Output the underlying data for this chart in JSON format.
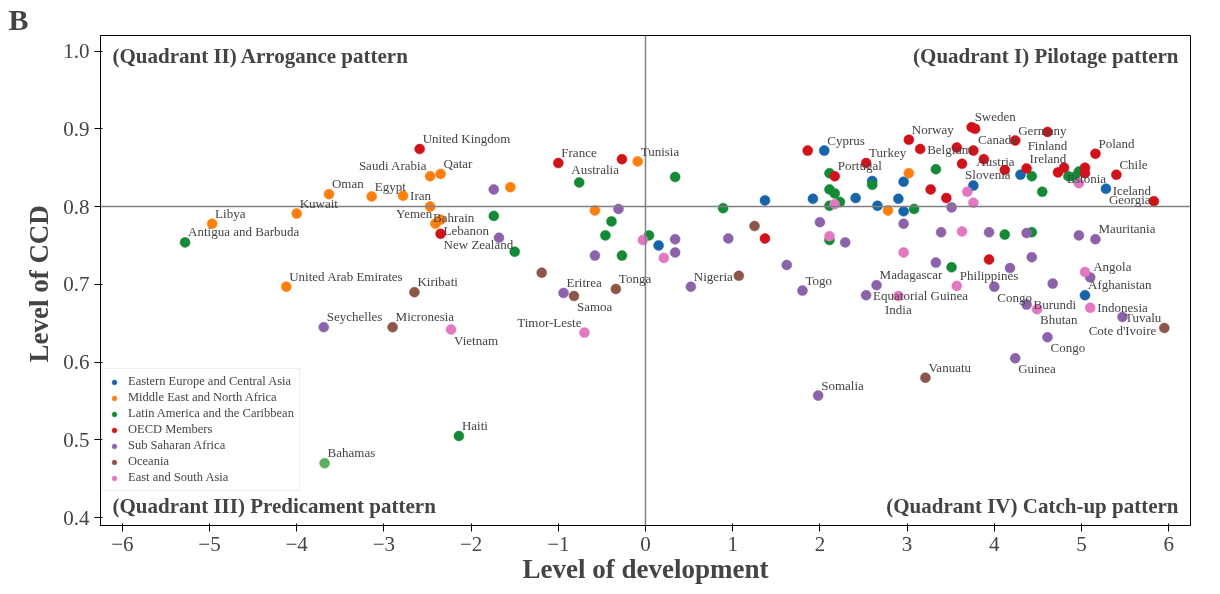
{
  "chart_data": {
    "type": "scatter",
    "title": "B",
    "xlabel": "Level of development",
    "ylabel": "Level of  CCD",
    "xlim": [
      -6.25,
      6.25
    ],
    "ylim": [
      0.39,
      1.02
    ],
    "xticks": [
      {
        "value": -6,
        "label": "−6"
      },
      {
        "value": -5,
        "label": "−5"
      },
      {
        "value": -4,
        "label": "−4"
      },
      {
        "value": -3,
        "label": "−3"
      },
      {
        "value": -2,
        "label": "−2"
      },
      {
        "value": -1,
        "label": "−1"
      },
      0,
      1,
      2,
      3,
      4,
      5,
      6
    ],
    "yticks": [
      {
        "value": 0.4,
        "label": "0.4"
      },
      {
        "value": 0.5,
        "label": "0.5"
      },
      {
        "value": 0.6,
        "label": "0.6"
      },
      {
        "value": 0.7,
        "label": "0.7"
      },
      {
        "value": 0.8,
        "label": "0.8"
      },
      {
        "value": 0.9,
        "label": "0.9"
      },
      {
        "value": 1.0,
        "label": "1.0"
      }
    ],
    "grid": false,
    "legend": "bottom left",
    "marker": "circle",
    "ref_lines": [
      {
        "axis": "x",
        "value": 0,
        "color": "#808080"
      },
      {
        "axis": "y",
        "value": 0.8,
        "color": "#808080"
      }
    ],
    "series": [
      {
        "name": "Eastern Europe and Central Asia",
        "color": "#1764ab",
        "x": [
          2.05,
          1.37,
          1.92,
          2.41,
          2.6,
          2.66,
          2.9,
          2.96,
          2.96,
          3.76,
          4.3,
          5.28,
          0.15,
          5.04
        ],
        "values": [
          0.872,
          0.808,
          0.81,
          0.811,
          0.833,
          0.801,
          0.81,
          0.832,
          0.794,
          0.827,
          0.841,
          0.823,
          0.75,
          0.686
        ]
      },
      {
        "name": "Middle East and North Africa",
        "color": "#ff7f0e",
        "x": [
          -4.97,
          -4.12,
          -4.0,
          -3.63,
          -3.14,
          -2.78,
          -2.47,
          -2.35,
          -2.47,
          -2.35,
          -2.41,
          -1.55,
          -0.58,
          -0.09,
          2.78,
          3.02
        ],
        "values": [
          0.778,
          0.697,
          0.791,
          0.816,
          0.813,
          0.814,
          0.839,
          0.842,
          0.8,
          0.783,
          0.778,
          0.825,
          0.795,
          0.858,
          0.795,
          0.843
        ]
      },
      {
        "name": "Latin America and the Caribbean",
        "color": "#138a36",
        "colors": [
          null,
          null,
          null,
          null,
          null,
          null,
          null,
          null,
          null,
          null,
          null,
          null,
          null,
          null,
          null,
          null,
          null,
          null,
          null,
          null,
          null,
          null,
          null,
          null,
          null,
          null,
          null,
          null,
          "#5fae5f"
        ],
        "x": [
          -5.28,
          -1.74,
          -1.5,
          -0.76,
          -0.39,
          -0.46,
          -0.27,
          0.04,
          0.34,
          0.89,
          2.11,
          2.11,
          2.17,
          2.23,
          2.11,
          2.11,
          2.6,
          3.08,
          3.33,
          3.51,
          4.12,
          4.43,
          4.43,
          4.55,
          4.85,
          4.92,
          4.97,
          -2.14,
          -3.68
        ],
        "values": [
          0.754,
          0.788,
          0.742,
          0.831,
          0.781,
          0.763,
          0.737,
          0.763,
          0.838,
          0.798,
          0.843,
          0.822,
          0.817,
          0.806,
          0.801,
          0.757,
          0.828,
          0.797,
          0.848,
          0.722,
          0.764,
          0.839,
          0.767,
          0.819,
          0.839,
          0.838,
          0.845,
          0.505,
          0.47
        ]
      },
      {
        "name": "OECD Members",
        "color": "#d0121b",
        "x": [
          -2.59,
          -2.35,
          -1.0,
          -0.27,
          1.37,
          1.86,
          2.17,
          2.53,
          3.02,
          3.15,
          3.57,
          3.74,
          3.78,
          3.76,
          3.88,
          3.63,
          4.12,
          4.24,
          4.61,
          4.37,
          4.73,
          4.8,
          5.04,
          5.04,
          5.16,
          5.4,
          5.83,
          3.27,
          3.45,
          3.94
        ],
        "values": [
          0.874,
          0.765,
          0.856,
          0.861,
          0.759,
          0.872,
          0.839,
          0.856,
          0.886,
          0.874,
          0.876,
          0.902,
          0.9,
          0.872,
          0.861,
          0.855,
          0.847,
          0.885,
          0.896,
          0.849,
          0.844,
          0.85,
          0.85,
          0.843,
          0.868,
          0.841,
          0.807,
          0.822,
          0.811,
          0.732
        ]
      },
      {
        "name": "Sub Saharan Africa",
        "color": "#8c62aa",
        "x": [
          -1.74,
          -1.68,
          -3.69,
          -0.94,
          -0.58,
          -0.31,
          0.34,
          0.34,
          0.52,
          0.95,
          1.62,
          1.8,
          2.0,
          2.29,
          2.96,
          3.51,
          3.39,
          3.94,
          4.37,
          4.97,
          5.16,
          3.33,
          4.18,
          4.43,
          2.65,
          2.53,
          4.0,
          4.67,
          5.1,
          4.37,
          5.47,
          4.61,
          4.24,
          1.98
        ],
        "values": [
          0.822,
          0.76,
          0.645,
          0.689,
          0.737,
          0.797,
          0.758,
          0.741,
          0.697,
          0.759,
          0.725,
          0.692,
          0.78,
          0.754,
          0.778,
          0.799,
          0.767,
          0.767,
          0.766,
          0.763,
          0.758,
          0.728,
          0.721,
          0.735,
          0.699,
          0.686,
          0.697,
          0.701,
          0.709,
          0.674,
          0.658,
          0.632,
          0.605,
          0.557
        ]
      },
      {
        "name": "Oceania",
        "color": "#8c564b",
        "x": [
          -2.65,
          -2.9,
          -1.19,
          -0.82,
          -0.34,
          1.07,
          1.25,
          3.21,
          5.95
        ],
        "values": [
          0.69,
          0.645,
          0.715,
          0.685,
          0.694,
          0.711,
          0.775,
          0.58,
          0.644
        ]
      },
      {
        "name": "East and South Asia",
        "color": "#e377c2",
        "x": [
          -2.23,
          -0.7,
          -0.03,
          0.21,
          2.17,
          2.11,
          2.96,
          3.63,
          3.69,
          3.76,
          4.97,
          3.57,
          2.9,
          5.04,
          4.49,
          5.1
        ],
        "values": [
          0.642,
          0.638,
          0.757,
          0.734,
          0.803,
          0.762,
          0.741,
          0.768,
          0.819,
          0.805,
          0.83,
          0.698,
          0.685,
          0.716,
          0.668,
          0.67
        ]
      }
    ],
    "annotations": [
      "(Quadrant II) Arrogance pattern",
      "(Quadrant I) Pilotage pattern",
      "(Quadrant III) Predicament pattern",
      "(Quadrant IV) Catch-up pattern",
      {
        "text": "Libya",
        "x": -4.97,
        "y": 0.778
      },
      {
        "text": "Antigua and Barbuda",
        "x": -5.28,
        "y": 0.754
      },
      {
        "text": "Kuwait",
        "x": -4.0,
        "y": 0.791
      },
      {
        "text": "Oman",
        "x": -3.63,
        "y": 0.816
      },
      {
        "text": "Egypt",
        "x": -3.14,
        "y": 0.813
      },
      {
        "text": "Iran",
        "x": -2.78,
        "y": 0.814
      },
      {
        "text": "Qatar",
        "x": -2.35,
        "y": 0.842
      },
      {
        "text": "Saudi Arabia",
        "x": -2.47,
        "y": 0.839
      },
      {
        "text": "United Kingdom",
        "x": -2.59,
        "y": 0.874
      },
      {
        "text": "Bahrain",
        "x": -2.47,
        "y": 0.8
      },
      {
        "text": "Lebanon",
        "x": -2.35,
        "y": 0.783
      },
      {
        "text": "Yemen",
        "x": -2.41,
        "y": 0.778
      },
      {
        "text": "New Zealand",
        "x": -2.35,
        "y": 0.765
      },
      {
        "text": "United Arab Emirates",
        "x": -4.12,
        "y": 0.697
      },
      {
        "text": "Kiribati",
        "x": -2.65,
        "y": 0.69
      },
      {
        "text": "Seychelles",
        "x": -3.69,
        "y": 0.645
      },
      {
        "text": "Micronesia",
        "x": -2.9,
        "y": 0.645
      },
      {
        "text": "Vietnam",
        "x": -2.23,
        "y": 0.642
      },
      {
        "text": "Haiti",
        "x": -2.14,
        "y": 0.505
      },
      {
        "text": "Bahamas",
        "x": -3.68,
        "y": 0.47
      },
      {
        "text": "France",
        "x": -1.0,
        "y": 0.856
      },
      {
        "text": "Australia",
        "x": -0.27,
        "y": 0.861
      },
      {
        "text": "Tunisia",
        "x": -0.09,
        "y": 0.858
      },
      {
        "text": "Eritrea",
        "x": -0.94,
        "y": 0.689
      },
      {
        "text": "Samoa",
        "x": -0.82,
        "y": 0.685
      },
      {
        "text": "Tonga",
        "x": -0.34,
        "y": 0.694
      },
      {
        "text": "Timor-Leste",
        "x": -0.7,
        "y": 0.638
      },
      {
        "text": "Nigeria",
        "x": 0.52,
        "y": 0.697
      },
      {
        "text": "Togo",
        "x": 1.8,
        "y": 0.692
      },
      {
        "text": "Cyprus",
        "x": 2.05,
        "y": 0.872
      },
      {
        "text": "Portugal",
        "x": 2.17,
        "y": 0.839
      },
      {
        "text": "Turkey",
        "x": 2.53,
        "y": 0.856
      },
      {
        "text": "Norway",
        "x": 3.02,
        "y": 0.886
      },
      {
        "text": "Belgium",
        "x": 3.15,
        "y": 0.874
      },
      {
        "text": "Sweden",
        "x": 3.74,
        "y": 0.902
      },
      {
        "text": "Canada",
        "x": 3.78,
        "y": 0.9
      },
      {
        "text": "Austria",
        "x": 3.76,
        "y": 0.872
      },
      {
        "text": "Slovenia",
        "x": 3.63,
        "y": 0.855
      },
      {
        "text": "Germany",
        "x": 4.24,
        "y": 0.885
      },
      {
        "text": "Finland",
        "x": 4.61,
        "y": 0.896
      },
      {
        "text": "Ireland",
        "x": 4.37,
        "y": 0.849
      },
      {
        "text": "Estonia",
        "x": 4.8,
        "y": 0.85
      },
      {
        "text": "Poland",
        "x": 5.16,
        "y": 0.868
      },
      {
        "text": "Chile",
        "x": 5.4,
        "y": 0.841
      },
      {
        "text": "Georgia",
        "x": 5.28,
        "y": 0.823
      },
      {
        "text": "Iceland",
        "x": 5.83,
        "y": 0.807
      },
      {
        "text": "Mauritania",
        "x": 5.16,
        "y": 0.758
      },
      {
        "text": "Madagascar",
        "x": 2.65,
        "y": 0.699
      },
      {
        "text": "Equatorial Guinea",
        "x": 2.53,
        "y": 0.686
      },
      {
        "text": "India",
        "x": 2.9,
        "y": 0.685
      },
      {
        "text": "Philippines",
        "x": 3.57,
        "y": 0.698
      },
      {
        "text": "Congo",
        "x": 4.0,
        "y": 0.697
      },
      {
        "text": "Angola",
        "x": 5.1,
        "y": 0.709
      },
      {
        "text": "Afghanistan",
        "x": 5.04,
        "y": 0.686
      },
      {
        "text": "Burundi",
        "x": 4.37,
        "y": 0.674
      },
      {
        "text": "Bhutan",
        "x": 4.49,
        "y": 0.668
      },
      {
        "text": "Indonesia",
        "x": 5.1,
        "y": 0.67
      },
      {
        "text": "Cote d'Ivoire",
        "x": 5.47,
        "y": 0.658
      },
      {
        "text": "Tuvalu",
        "x": 5.95,
        "y": 0.644
      },
      {
        "text": "Congo",
        "x": 4.61,
        "y": 0.632
      },
      {
        "text": "Guinea",
        "x": 4.24,
        "y": 0.605
      },
      {
        "text": "Vanuatu",
        "x": 3.21,
        "y": 0.58
      },
      {
        "text": "Somalia",
        "x": 1.98,
        "y": 0.557
      }
    ]
  }
}
